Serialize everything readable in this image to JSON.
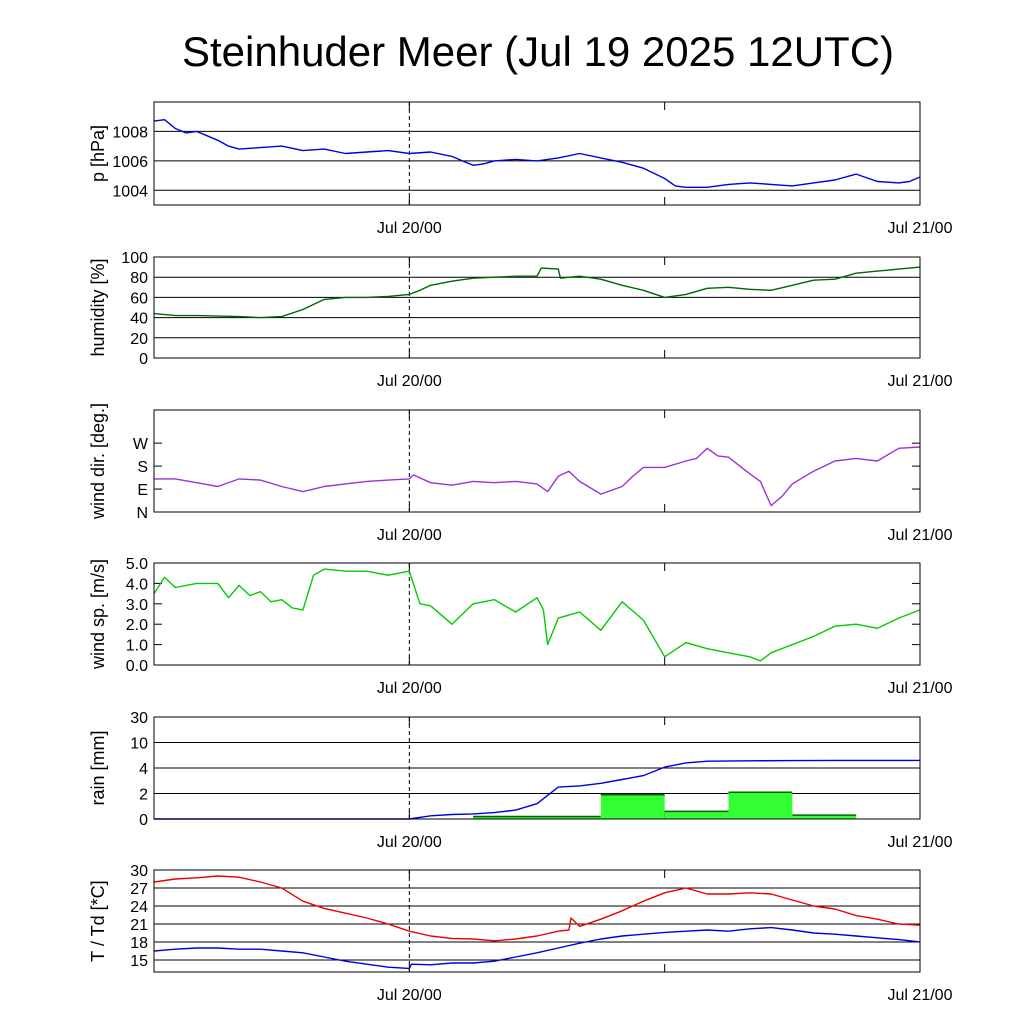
{
  "title": "Steinhuder Meer (Jul 19 2025 12UTC)",
  "x_axis": {
    "unit": "hours since Jul 19 12UTC",
    "range": [
      0,
      36
    ],
    "labels": [
      {
        "x": 12,
        "label": "Jul 20/00"
      },
      {
        "x": 36,
        "label": "Jul 21/00"
      }
    ],
    "minor_ticks": [
      24
    ],
    "dashed_marker": 12
  },
  "chart_data": [
    {
      "id": "pressure",
      "type": "line",
      "ylabel": "p [hPa]",
      "ylim": [
        1003,
        1010
      ],
      "ytick_values": [
        1004,
        1006,
        1008
      ],
      "ytick_labels": [
        "1004",
        "1006",
        "1008"
      ],
      "grid": true,
      "series": [
        {
          "color": "#0000dd",
          "x": [
            0,
            0.5,
            1,
            1.5,
            2,
            2.5,
            3,
            3.5,
            4,
            5,
            6,
            7,
            8,
            9,
            10,
            11,
            12,
            13,
            14,
            14.5,
            15,
            15.5,
            16,
            17,
            18,
            19,
            20,
            21,
            22,
            23,
            24,
            24.5,
            25,
            26,
            27,
            28,
            29,
            30,
            31,
            32,
            33,
            34,
            35,
            35.5,
            36
          ],
          "y": [
            1008.7,
            1008.8,
            1008.2,
            1007.9,
            1008.0,
            1007.7,
            1007.4,
            1007.0,
            1006.8,
            1006.9,
            1007.0,
            1006.7,
            1006.8,
            1006.5,
            1006.6,
            1006.7,
            1006.5,
            1006.6,
            1006.3,
            1006.0,
            1005.7,
            1005.8,
            1006.0,
            1006.1,
            1006.0,
            1006.2,
            1006.5,
            1006.2,
            1005.9,
            1005.5,
            1004.8,
            1004.3,
            1004.2,
            1004.2,
            1004.4,
            1004.5,
            1004.4,
            1004.3,
            1004.5,
            1004.7,
            1005.1,
            1004.6,
            1004.5,
            1004.6,
            1004.9
          ]
        }
      ]
    },
    {
      "id": "humidity",
      "type": "line",
      "ylabel": "humidity [%]",
      "ylim": [
        0,
        100
      ],
      "ytick_values": [
        0,
        20,
        40,
        60,
        80,
        100
      ],
      "ytick_labels": [
        "0",
        "20",
        "40",
        "60",
        "80",
        "100"
      ],
      "grid": true,
      "series": [
        {
          "color": "#006600",
          "x": [
            0,
            1,
            2,
            3,
            4,
            5,
            6,
            7,
            8,
            9,
            10,
            11,
            12,
            12.5,
            13,
            14,
            15,
            16,
            17,
            18,
            18.2,
            19,
            19.1,
            20,
            21,
            22,
            23,
            24,
            25,
            26,
            27,
            28,
            29,
            30,
            31,
            32,
            33,
            34,
            35,
            36
          ],
          "y": [
            44,
            42,
            42,
            41.5,
            41,
            40,
            41,
            48,
            58,
            60,
            60,
            61,
            63,
            67,
            72,
            76,
            79,
            80,
            81,
            81,
            89,
            88,
            79,
            81,
            78,
            72,
            67,
            60,
            63,
            69,
            70,
            68,
            67,
            72,
            77,
            78,
            84,
            86,
            88,
            90
          ]
        }
      ]
    },
    {
      "id": "wind_direction",
      "type": "line",
      "ylabel": "wind dir. [deg.]",
      "ylim": [
        0,
        400
      ],
      "ytick_values": [
        0,
        90,
        180,
        270
      ],
      "ytick_labels": [
        "N",
        "E",
        "S",
        "W"
      ],
      "grid": false,
      "series": [
        {
          "color": "#9933dd",
          "x": [
            0,
            1,
            2,
            3,
            4,
            5,
            6,
            7,
            7.5,
            8,
            9,
            10,
            11,
            12,
            12.2,
            13,
            14,
            15,
            16,
            17,
            18,
            18.5,
            19,
            19.5,
            20,
            21,
            22,
            22.5,
            23,
            24,
            25,
            25.5,
            26,
            26.5,
            27,
            28,
            28.5,
            29,
            29.5,
            30,
            31,
            32,
            33,
            34,
            35,
            36
          ],
          "y": [
            130,
            130,
            115,
            100,
            130,
            125,
            100,
            80,
            90,
            100,
            110,
            120,
            125,
            130,
            145,
            115,
            105,
            120,
            115,
            120,
            110,
            80,
            140,
            160,
            120,
            70,
            100,
            140,
            175,
            175,
            200,
            210,
            250,
            220,
            215,
            150,
            120,
            25,
            60,
            110,
            160,
            200,
            210,
            200,
            250,
            255
          ]
        }
      ]
    },
    {
      "id": "wind_speed",
      "type": "line",
      "ylabel": "wind sp. [m/s]",
      "ylim": [
        0,
        5
      ],
      "ytick_values": [
        0,
        1,
        2,
        3,
        4,
        5
      ],
      "ytick_labels": [
        "0.0",
        "1.0",
        "2.0",
        "3.0",
        "4.0",
        "5.0"
      ],
      "grid": false,
      "series": [
        {
          "color": "#00cc00",
          "x": [
            0,
            0.5,
            1,
            2,
            3,
            3.5,
            4,
            4.5,
            5,
            5.5,
            6,
            6.5,
            7,
            7.5,
            8,
            9,
            10,
            11,
            12,
            12.5,
            13,
            14,
            15,
            16,
            17,
            18,
            18.3,
            18.5,
            19,
            20,
            21,
            22,
            23,
            24,
            25,
            26,
            27,
            28,
            28.5,
            29,
            30,
            31,
            32,
            33,
            34,
            35,
            36
          ],
          "y": [
            3.5,
            4.3,
            3.8,
            4.0,
            4.0,
            3.3,
            3.9,
            3.4,
            3.6,
            3.1,
            3.2,
            2.8,
            2.7,
            4.4,
            4.7,
            4.6,
            4.6,
            4.4,
            4.6,
            3.0,
            2.9,
            2.0,
            3.0,
            3.2,
            2.6,
            3.3,
            2.7,
            1.0,
            2.3,
            2.6,
            1.7,
            3.1,
            2.2,
            0.4,
            1.1,
            0.8,
            0.6,
            0.4,
            0.2,
            0.6,
            1.0,
            1.4,
            1.9,
            2.0,
            1.8,
            2.3,
            2.7
          ]
        }
      ]
    },
    {
      "id": "rain",
      "type": "bar+line",
      "ylabel": "rain [mm]",
      "ylim": [
        0,
        30
      ],
      "scale": "piecewise",
      "ytick_values": [
        0,
        2,
        4,
        10,
        30
      ],
      "ytick_labels": [
        "0",
        "2",
        "4",
        "10",
        "30"
      ],
      "grid": true,
      "bars": {
        "color": "#33ff33",
        "edges": [
          12,
          15,
          18,
          21,
          24,
          27,
          30,
          33,
          36
        ],
        "values": [
          0,
          0.2,
          0.2,
          1.9,
          0.6,
          2.1,
          0.3,
          0,
          0
        ]
      },
      "series": [
        {
          "color": "#0000dd",
          "x": [
            0,
            12,
            13,
            14,
            15,
            16,
            17,
            18,
            19,
            20,
            21,
            22,
            23,
            24,
            25,
            26,
            28,
            30,
            32,
            34,
            36
          ],
          "y": [
            0,
            0,
            0.25,
            0.35,
            0.4,
            0.5,
            0.7,
            1.2,
            2.5,
            2.6,
            2.8,
            3.1,
            3.4,
            4.2,
            5.2,
            5.6,
            5.7,
            5.75,
            5.8,
            5.8,
            5.8
          ]
        }
      ]
    },
    {
      "id": "temperature",
      "type": "line",
      "ylabel": "T / Td [*C]",
      "ylim": [
        13,
        30
      ],
      "ytick_values": [
        15,
        18,
        21,
        24,
        27,
        30
      ],
      "ytick_labels": [
        "15",
        "18",
        "21",
        "24",
        "27",
        "30"
      ],
      "grid": true,
      "series": [
        {
          "color": "#ee0000",
          "x": [
            0,
            1,
            2,
            3,
            4,
            5,
            6,
            7,
            8,
            9,
            10,
            11,
            12,
            13,
            14,
            15,
            16,
            17,
            18,
            19,
            19.5,
            19.6,
            20,
            21,
            22,
            23,
            24,
            25,
            26,
            27,
            28,
            29,
            30,
            31,
            32,
            33,
            34,
            35,
            36
          ],
          "y": [
            28,
            28.5,
            28.7,
            29.0,
            28.8,
            28.0,
            27.0,
            24.8,
            23.6,
            22.8,
            22.0,
            21.0,
            19.8,
            19.0,
            18.6,
            18.5,
            18.2,
            18.5,
            19.0,
            19.8,
            20.0,
            22.0,
            20.6,
            21.8,
            23.2,
            24.8,
            26.2,
            27.0,
            26.0,
            26.0,
            26.2,
            26.0,
            25.0,
            24.0,
            23.5,
            22.4,
            21.8,
            21.0,
            20.8
          ]
        },
        {
          "color": "#0000dd",
          "x": [
            0,
            1,
            2,
            3,
            4,
            5,
            6,
            7,
            8,
            9,
            10,
            11,
            12,
            12.1,
            13,
            14,
            15,
            16,
            17,
            18,
            19,
            20,
            21,
            22,
            23,
            24,
            25,
            26,
            27,
            28,
            29,
            30,
            31,
            32,
            33,
            34,
            35,
            36
          ],
          "y": [
            16.5,
            16.8,
            17.0,
            17.0,
            16.8,
            16.8,
            16.5,
            16.2,
            15.5,
            14.8,
            14.3,
            13.8,
            13.6,
            14.3,
            14.2,
            14.5,
            14.5,
            14.8,
            15.5,
            16.2,
            17.0,
            17.8,
            18.5,
            19.0,
            19.3,
            19.6,
            19.8,
            20.0,
            19.8,
            20.2,
            20.4,
            20.0,
            19.5,
            19.3,
            19.0,
            18.7,
            18.4,
            18.0
          ]
        }
      ]
    }
  ]
}
